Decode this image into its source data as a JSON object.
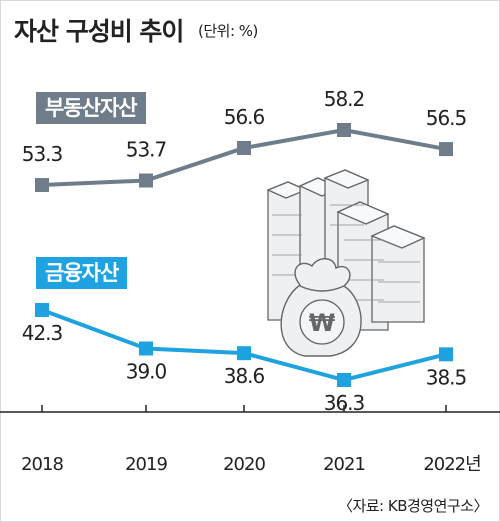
{
  "header": {
    "title": "자산 구성비 추이",
    "unit": "(단위: %)"
  },
  "source": "〈자료: KB경영연구소〉",
  "colors": {
    "real_estate": "#6e7d89",
    "financial": "#1fa3e0"
  },
  "chart_data": {
    "type": "line",
    "title": "자산 구성비 추이",
    "unit": "%",
    "categories": [
      "2018",
      "2019",
      "2020",
      "2021",
      "2022년"
    ],
    "series": [
      {
        "name": "부동산자산",
        "values": [
          53.3,
          53.7,
          56.6,
          58.2,
          56.5
        ],
        "labels": [
          "53.3",
          "53.7",
          "56.6",
          "58.2",
          "56.5"
        ],
        "color": "#6e7d89"
      },
      {
        "name": "금융자산",
        "values": [
          42.3,
          39.0,
          38.6,
          36.3,
          38.5
        ],
        "labels": [
          "42.3",
          "39.0",
          "38.6",
          "36.3",
          "38.5"
        ],
        "color": "#1fa3e0"
      }
    ],
    "grid": false,
    "legend": "inline-labels"
  }
}
